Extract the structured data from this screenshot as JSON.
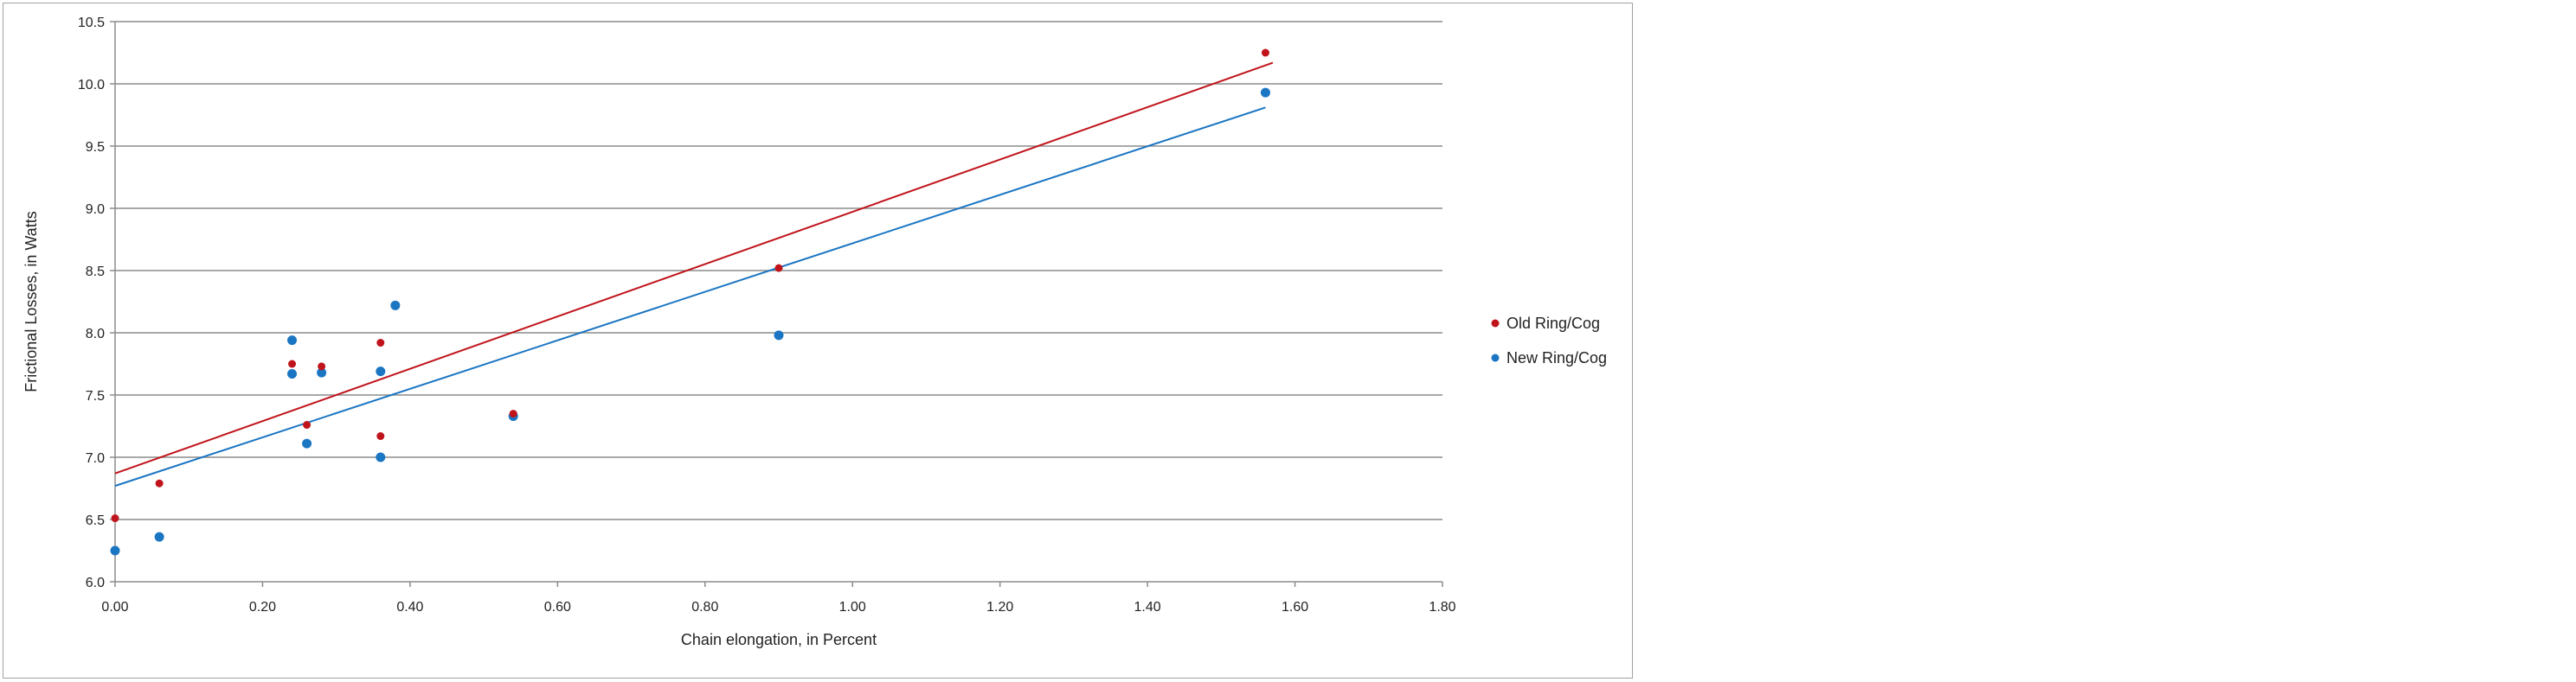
{
  "chart_data": {
    "type": "scatter",
    "xlabel": "Chain elongation, in Percent",
    "ylabel": "Frictional Losses, in Watts",
    "xlim": [
      0,
      1.8
    ],
    "ylim": [
      6.0,
      10.5
    ],
    "x_ticks": [
      "0.00",
      "0.20",
      "0.40",
      "0.60",
      "0.80",
      "1.00",
      "1.20",
      "1.40",
      "1.60",
      "1.80"
    ],
    "y_ticks": [
      "6.0",
      "6.5",
      "7.0",
      "7.5",
      "8.0",
      "8.5",
      "9.0",
      "9.5",
      "10.0",
      "10.5"
    ],
    "grid": "horizontal",
    "legend_position": "right",
    "series": [
      {
        "name": "Old Ring/Cog",
        "color": "#c0141c",
        "points": [
          [
            0.0,
            6.51
          ],
          [
            0.06,
            6.79
          ],
          [
            0.24,
            7.75
          ],
          [
            0.26,
            7.26
          ],
          [
            0.28,
            7.73
          ],
          [
            0.36,
            7.92
          ],
          [
            0.36,
            7.17
          ],
          [
            0.54,
            7.35
          ],
          [
            0.9,
            8.52
          ],
          [
            1.56,
            10.25
          ]
        ],
        "trendline": [
          [
            0.0,
            6.87
          ],
          [
            1.57,
            10.17
          ]
        ]
      },
      {
        "name": "New Ring/Cog",
        "color": "#1a75c2",
        "points": [
          [
            0.0,
            6.25
          ],
          [
            0.06,
            6.36
          ],
          [
            0.24,
            7.94
          ],
          [
            0.24,
            7.67
          ],
          [
            0.26,
            7.11
          ],
          [
            0.28,
            7.68
          ],
          [
            0.36,
            7.69
          ],
          [
            0.36,
            7.0
          ],
          [
            0.38,
            8.22
          ],
          [
            0.54,
            7.33
          ],
          [
            0.9,
            7.98
          ],
          [
            1.56,
            9.93
          ]
        ],
        "trendline": [
          [
            0.0,
            6.77
          ],
          [
            1.56,
            9.81
          ]
        ]
      }
    ]
  }
}
